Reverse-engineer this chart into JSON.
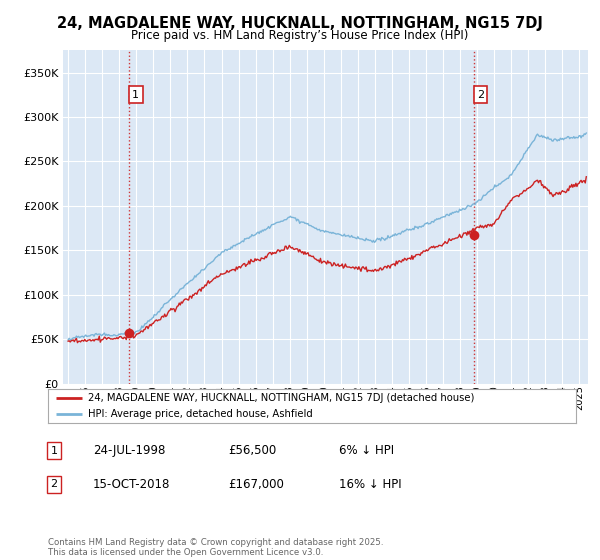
{
  "title": "24, MAGDALENE WAY, HUCKNALL, NOTTINGHAM, NG15 7DJ",
  "subtitle": "Price paid vs. HM Land Registry’s House Price Index (HPI)",
  "ytick_vals": [
    0,
    50000,
    100000,
    150000,
    200000,
    250000,
    300000,
    350000
  ],
  "ylim": [
    0,
    375000
  ],
  "xlim_start": 1994.7,
  "xlim_end": 2025.5,
  "hpi_color": "#7ab4d8",
  "price_color": "#cc2222",
  "dashed_color": "#cc2222",
  "plot_bg_color": "#dce8f5",
  "sale1_x": 1998.56,
  "sale1_y": 56500,
  "sale1_label": "1",
  "sale2_x": 2018.79,
  "sale2_y": 167000,
  "sale2_label": "2",
  "legend_line1": "24, MAGDALENE WAY, HUCKNALL, NOTTINGHAM, NG15 7DJ (detached house)",
  "legend_line2": "HPI: Average price, detached house, Ashfield",
  "note1_label": "1",
  "note1_date": "24-JUL-1998",
  "note1_price": "£56,500",
  "note1_rel": "6% ↓ HPI",
  "note2_label": "2",
  "note2_date": "15-OCT-2018",
  "note2_price": "£167,000",
  "note2_rel": "16% ↓ HPI",
  "footer": "Contains HM Land Registry data © Crown copyright and database right 2025.\nThis data is licensed under the Open Government Licence v3.0.",
  "background_color": "#ffffff",
  "grid_color": "#ffffff"
}
